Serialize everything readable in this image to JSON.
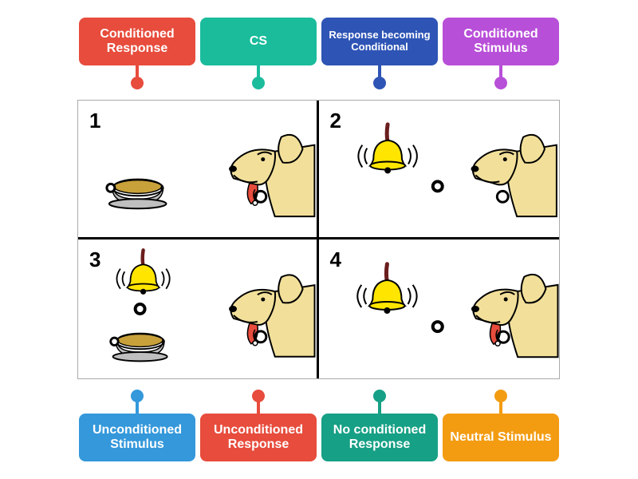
{
  "tiles": {
    "top": [
      {
        "label": "Conditioned Response",
        "bg": "#e74c3c",
        "pin": "#e74c3c"
      },
      {
        "label": "CS",
        "bg": "#1abc9c",
        "pin": "#1abc9c"
      },
      {
        "label": "Response becoming Conditional",
        "bg": "#2e54b5",
        "pin": "#2e54b5",
        "small": true
      },
      {
        "label": "Conditioned Stimulus",
        "bg": "#b84fd8",
        "pin": "#b84fd8"
      }
    ],
    "bottom": [
      {
        "label": "Unconditioned Stimulus",
        "bg": "#3498db",
        "pin": "#3498db"
      },
      {
        "label": "Unconditioned Response",
        "bg": "#e74c3c",
        "pin": "#e74c3c"
      },
      {
        "label": "No conditioned Response",
        "bg": "#16a085",
        "pin": "#16a085"
      },
      {
        "label": "Neutral Stimulus",
        "bg": "#f39c12",
        "pin": "#f39c12"
      }
    ]
  },
  "cells": {
    "c1": {
      "num": "1",
      "food": true,
      "bell": false,
      "saliva": true
    },
    "c2": {
      "num": "2",
      "food": false,
      "bell": true,
      "saliva": false
    },
    "c3": {
      "num": "3",
      "food": true,
      "bell": true,
      "saliva": true
    },
    "c4": {
      "num": "4",
      "food": false,
      "bell": true,
      "saliva": true
    }
  },
  "colors": {
    "dog_fill": "#f2e09a",
    "dog_stroke": "#000000",
    "bell_fill": "#ffe500",
    "bell_stroke": "#000000",
    "bell_handle": "#6b1e1e",
    "bowl_fill": "#bfbfbf",
    "bowl_stroke": "#000000",
    "food_fill": "#c8a13a",
    "tongue_fill": "#e74c3c",
    "collar_fill": "#cccccc"
  }
}
